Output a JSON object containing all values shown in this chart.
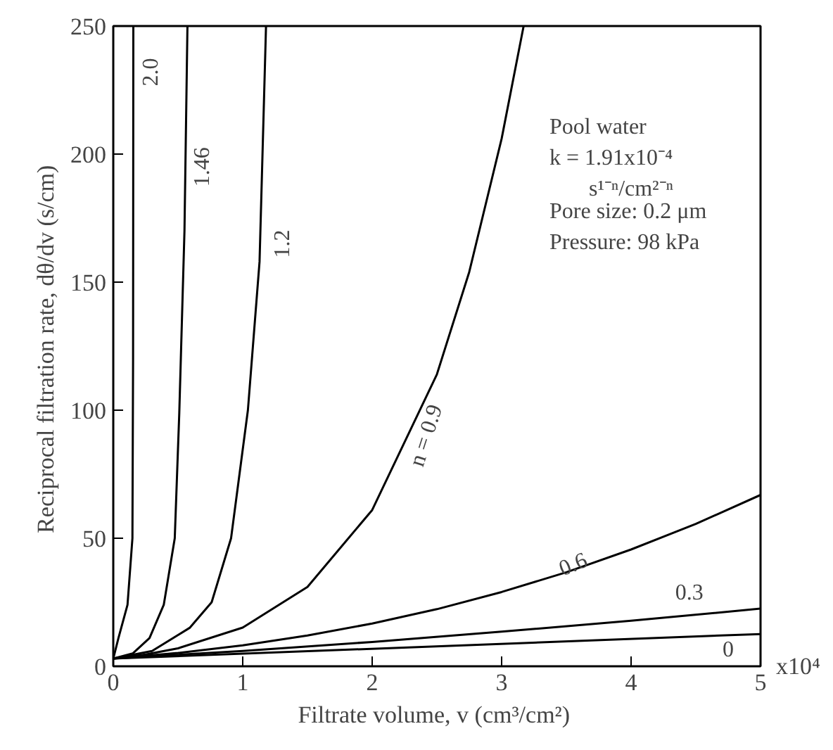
{
  "chart_data": {
    "type": "line",
    "xlabel": "Filtrate volume, v  (cm³/cm²)",
    "ylabel": "Reciprocal filtration rate, dθ/dv  (s/cm)",
    "xlim": [
      0,
      5
    ],
    "ylim": [
      0,
      250
    ],
    "xticks": [
      0,
      1,
      2,
      3,
      4,
      5
    ],
    "yticks": [
      0,
      50,
      100,
      150,
      200,
      250
    ],
    "grid": false,
    "marker": "none",
    "line_style": "solid",
    "series": [
      {
        "name": "0",
        "color": "#000000",
        "x": [
          0,
          5
        ],
        "values": [
          3,
          12.6
        ]
      },
      {
        "name": "0.3",
        "color": "#000000",
        "x": [
          0,
          1,
          2,
          3,
          4,
          5
        ],
        "values": [
          3,
          6.0,
          9.5,
          13.5,
          17.8,
          22.5
        ]
      },
      {
        "name": "0.6",
        "color": "#000000",
        "x": [
          0,
          0.5,
          1,
          1.5,
          2,
          2.5,
          3,
          3.5,
          4,
          4.5,
          5
        ],
        "values": [
          3,
          5.2,
          8.2,
          12.0,
          16.7,
          22.3,
          29.0,
          36.7,
          45.6,
          55.6,
          66.9
        ]
      },
      {
        "name": "n = 0.9",
        "color": "#000000",
        "x": [
          0,
          0.25,
          0.5,
          1,
          1.5,
          2,
          2.5,
          2.75,
          3,
          3.17
        ],
        "values": [
          3,
          4.6,
          7.0,
          15.1,
          31,
          61,
          114,
          154,
          206,
          250
        ]
      },
      {
        "name": "1.2",
        "color": "#000000",
        "x": [
          0,
          0.3,
          0.59,
          0.76,
          0.91,
          1.04,
          1.13,
          1.18
        ],
        "values": [
          3,
          6,
          15,
          25,
          50,
          100,
          158,
          250
        ]
      },
      {
        "name": "1.46",
        "color": "#000000",
        "x": [
          0,
          0.15,
          0.28,
          0.39,
          0.475,
          0.51,
          0.55,
          0.573
        ],
        "values": [
          3,
          5,
          11,
          24,
          50,
          99,
          170,
          250
        ]
      },
      {
        "name": "2.0",
        "color": "#000000",
        "x": [
          0,
          0.04,
          0.11,
          0.148,
          0.153,
          0.155
        ],
        "values": [
          3,
          11,
          24,
          50,
          120,
          250
        ]
      }
    ],
    "annotations": [
      "x10⁴",
      "Pool water",
      "k =  1.91x10⁻⁴",
      "s¹⁻ⁿ/cm²⁻ⁿ",
      "Pore size: 0.2 μm",
      "Pressure: 98 kPa"
    ]
  }
}
